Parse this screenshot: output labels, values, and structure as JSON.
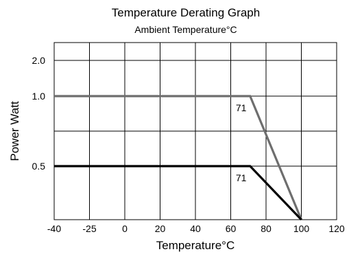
{
  "chart_data": {
    "type": "line",
    "title": "Temperature Derating Graph",
    "subtitle": "Ambient Temperature°C",
    "xlabel": "Temperature°C",
    "ylabel": "Power Watt",
    "grid": true,
    "x_ticks": [
      "-40",
      "-25",
      "0",
      "20",
      "40",
      "60",
      "80",
      "100",
      "120"
    ],
    "y_ticks": [
      "2.0",
      "1.0",
      "0.5"
    ],
    "series": [
      {
        "color": "#6e6e6e",
        "points": [
          {
            "x": -40,
            "y": 1.0
          },
          {
            "x": 71,
            "y": 1.0
          },
          {
            "x": 100,
            "y": 0
          }
        ]
      },
      {
        "color": "#000000",
        "points": [
          {
            "x": -40,
            "y": 0.5
          },
          {
            "x": 71,
            "y": 0.5
          },
          {
            "x": 100,
            "y": 0
          }
        ]
      }
    ],
    "annotations": [
      {
        "text": "71",
        "series": 0
      },
      {
        "text": "71",
        "series": 1
      }
    ]
  }
}
